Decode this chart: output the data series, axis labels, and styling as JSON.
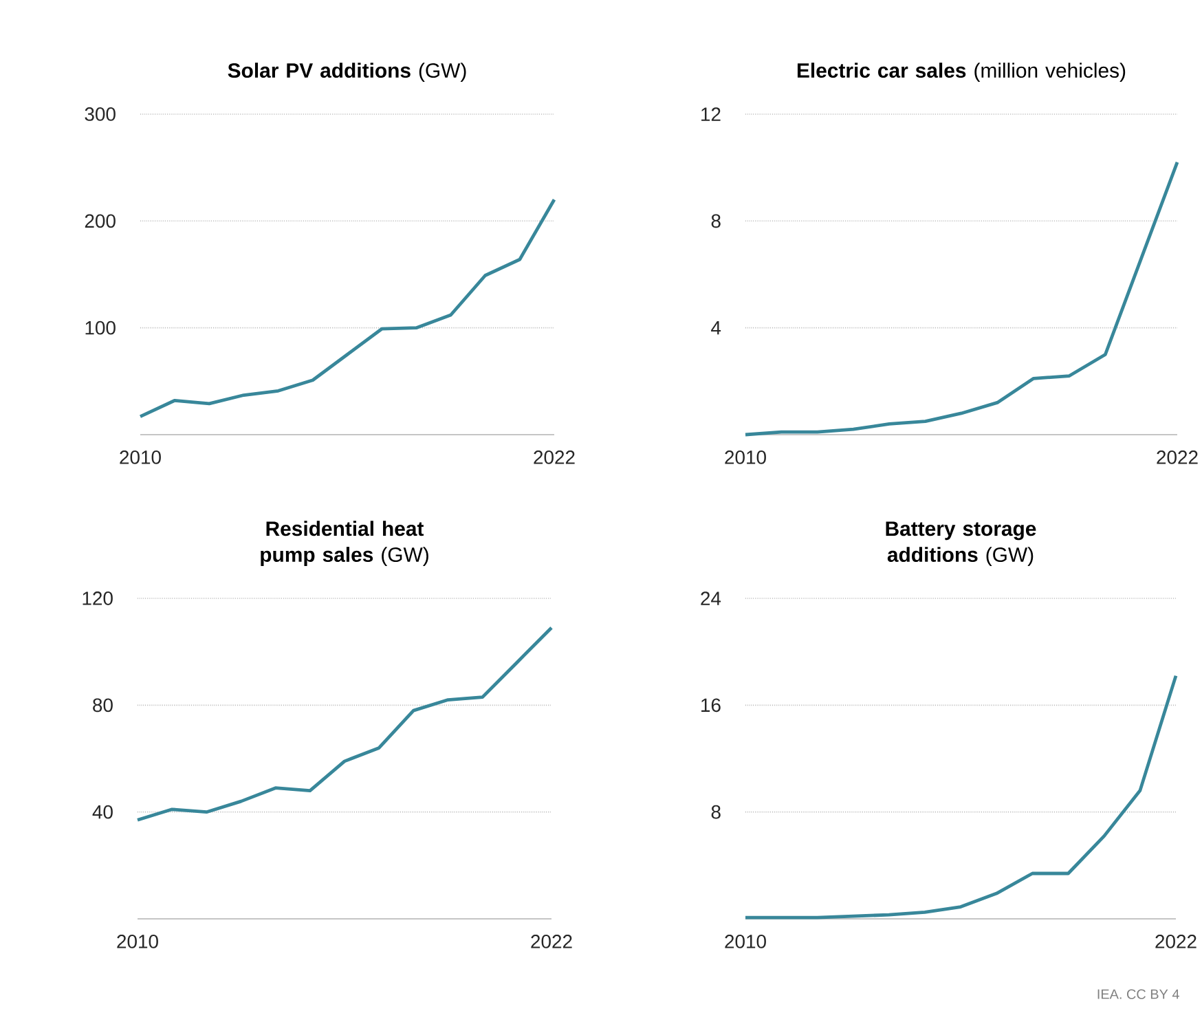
{
  "chart_data": [
    {
      "type": "line",
      "title": "**Solar PV additions** (GW)",
      "x": [
        2010,
        2011,
        2012,
        2013,
        2014,
        2015,
        2016,
        2017,
        2018,
        2019,
        2020,
        2021,
        2022
      ],
      "xlim": [
        2010,
        2022
      ],
      "xticks": [
        2010,
        2022
      ],
      "ylim": [
        0,
        300
      ],
      "yticks": [
        100,
        200,
        300
      ],
      "grid": "y",
      "line_style": "solid",
      "series": [
        {
          "color": "#38879a",
          "values": [
            17,
            32,
            29,
            37,
            41,
            51,
            75,
            99,
            100,
            112,
            149,
            164,
            220
          ]
        }
      ]
    },
    {
      "type": "line",
      "title": "**Electric car sales** (million vehicles)",
      "x": [
        2010,
        2011,
        2012,
        2013,
        2014,
        2015,
        2016,
        2017,
        2018,
        2019,
        2020,
        2021,
        2022
      ],
      "xlim": [
        2010,
        2022
      ],
      "xticks": [
        2010,
        2022
      ],
      "ylim": [
        0,
        12
      ],
      "yticks": [
        4,
        8,
        12
      ],
      "grid": "y",
      "line_style": "solid",
      "series": [
        {
          "color": "#38879a",
          "values": [
            0,
            0.1,
            0.1,
            0.2,
            0.4,
            0.5,
            0.8,
            1.2,
            2.1,
            2.2,
            3.0,
            6.6,
            10.2
          ]
        }
      ]
    },
    {
      "type": "line",
      "title": "**Residential heat pump sales** (GW)",
      "x": [
        2010,
        2011,
        2012,
        2013,
        2014,
        2015,
        2016,
        2017,
        2018,
        2019,
        2020,
        2021,
        2022
      ],
      "xlim": [
        2010,
        2022
      ],
      "xticks": [
        2010,
        2022
      ],
      "ylim": [
        0,
        120
      ],
      "yticks": [
        40,
        80,
        120
      ],
      "grid": "y",
      "line_style": "solid",
      "series": [
        {
          "color": "#38879a",
          "values": [
            37,
            41,
            40,
            44,
            49,
            48,
            59,
            64,
            78,
            82,
            83,
            96,
            109
          ]
        }
      ]
    },
    {
      "type": "line",
      "title": "**Battery storage additions** (GW)",
      "x": [
        2010,
        2011,
        2012,
        2013,
        2014,
        2015,
        2016,
        2017,
        2018,
        2019,
        2020,
        2021,
        2022
      ],
      "xlim": [
        2010,
        2022
      ],
      "xticks": [
        2010,
        2022
      ],
      "ylim": [
        0,
        24
      ],
      "yticks": [
        8,
        16,
        24
      ],
      "grid": "y",
      "line_style": "solid",
      "annotations": [
        "IEA. CC BY 4"
      ],
      "series": [
        {
          "color": "#38879a",
          "values": [
            0.1,
            0.1,
            0.1,
            0.2,
            0.3,
            0.5,
            0.9,
            1.9,
            3.4,
            3.4,
            6.2,
            9.6,
            18.2
          ]
        }
      ]
    }
  ]
}
